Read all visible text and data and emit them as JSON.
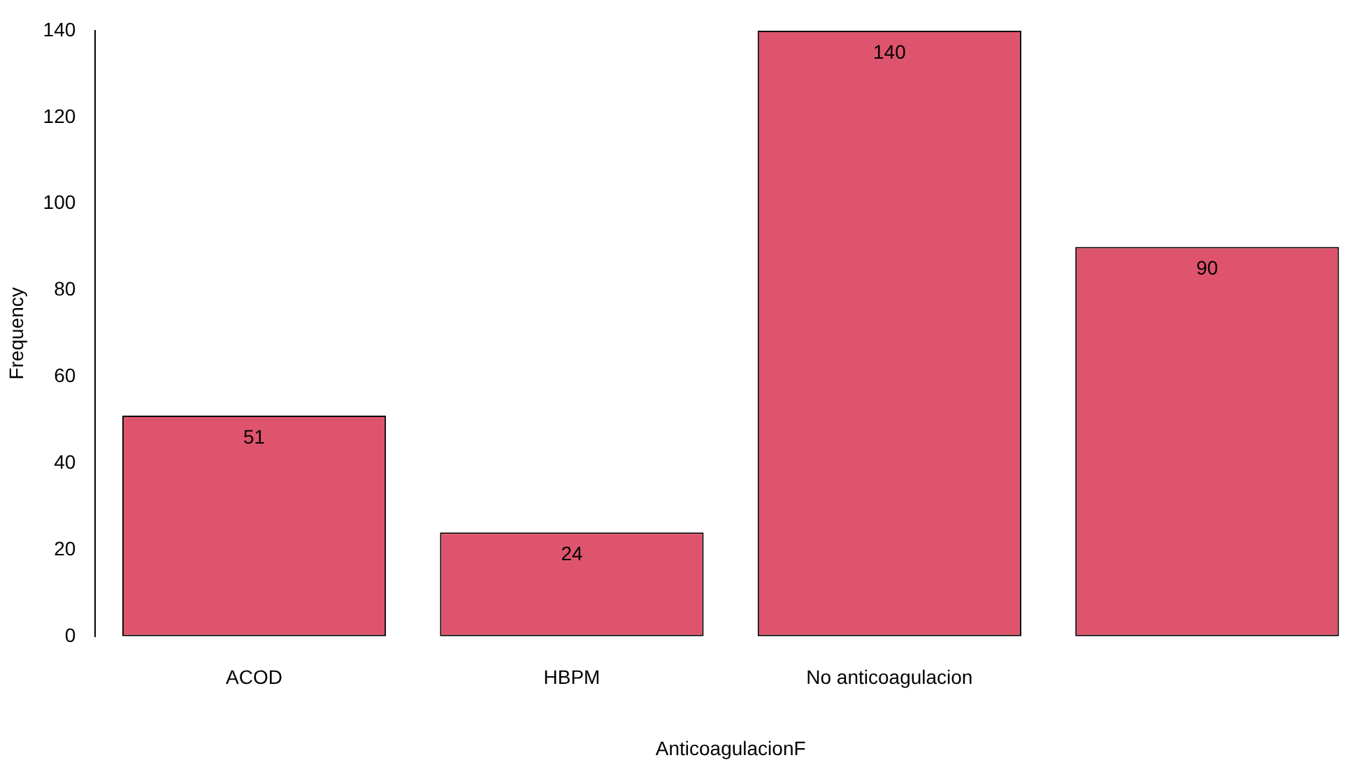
{
  "chart_data": {
    "type": "bar",
    "xlabel": "AnticoagulacionF",
    "ylabel": "Frequency",
    "categories": [
      "ACOD",
      "HBPM",
      "No anticoagulacion",
      null
    ],
    "values": [
      51,
      24,
      140,
      90
    ],
    "color": "#df546d",
    "ylim": [
      0,
      140
    ],
    "yticks": [
      0,
      20,
      40,
      60,
      80,
      100,
      120,
      140
    ],
    "grid": false,
    "data_labels": true
  }
}
